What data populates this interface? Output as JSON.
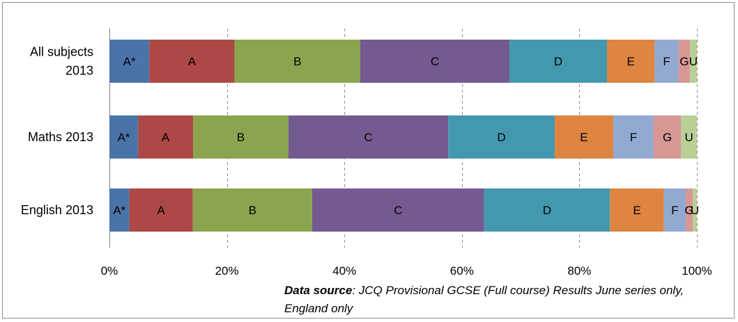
{
  "chart_data": {
    "type": "bar",
    "orientation": "horizontal",
    "stacked": "percent",
    "title": "",
    "xlabel": "",
    "ylabel": "",
    "xlim": [
      0,
      100
    ],
    "x_ticks": [
      "0%",
      "20%",
      "40%",
      "60%",
      "80%",
      "100%"
    ],
    "grid": true,
    "categories": [
      "All subjects 2013",
      "Maths 2013",
      "English 2013"
    ],
    "category_lines": [
      [
        "All subjects",
        "2013"
      ],
      [
        "Maths 2013"
      ],
      [
        "English 2013"
      ]
    ],
    "series": [
      {
        "name": "A*",
        "color": "#4a74a8",
        "values": [
          6.8,
          4.9,
          3.4
        ]
      },
      {
        "name": "A",
        "color": "#ac4845",
        "values": [
          14.5,
          9.4,
          10.8
        ]
      },
      {
        "name": "B",
        "color": "#8aa54e",
        "values": [
          21.4,
          16.3,
          20.3
        ]
      },
      {
        "name": "C",
        "color": "#735a91",
        "values": [
          25.4,
          27.3,
          29.3
        ]
      },
      {
        "name": "D",
        "color": "#4398ae",
        "values": [
          16.6,
          18.2,
          21.4
        ]
      },
      {
        "name": "E",
        "color": "#dd8541",
        "values": [
          8.1,
          10.0,
          9.2
        ]
      },
      {
        "name": "F",
        "color": "#92a9d1",
        "values": [
          4.1,
          6.9,
          3.7
        ]
      },
      {
        "name": "G",
        "color": "#d69795",
        "values": [
          1.9,
          4.7,
          1.2
        ]
      },
      {
        "name": "U",
        "color": "#b8cf96",
        "values": [
          1.2,
          2.7,
          0.7
        ]
      }
    ]
  },
  "source": {
    "label": "Data source",
    "text": ": JCQ Provisional GCSE (Full course) Results June series only, England only"
  }
}
